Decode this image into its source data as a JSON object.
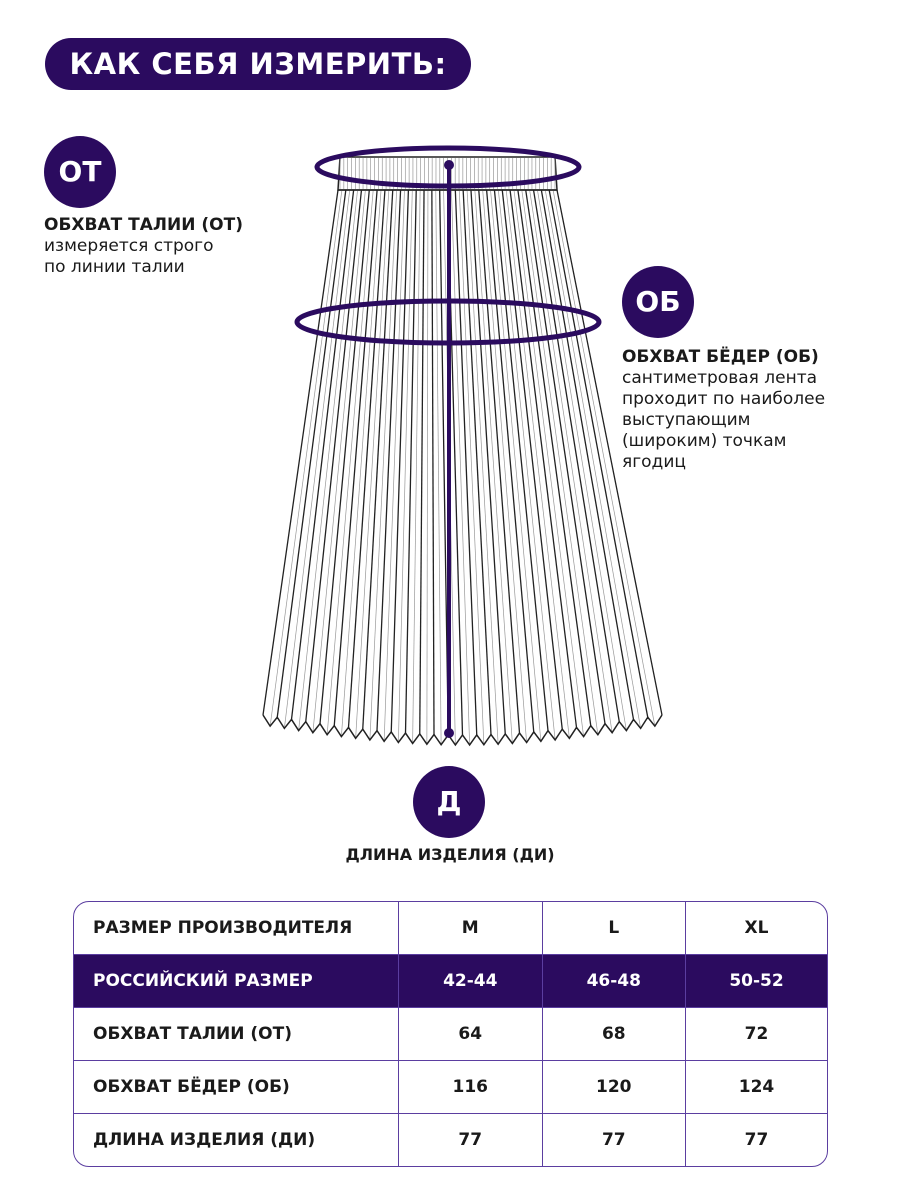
{
  "title": "КАК СЕБЯ ИЗМЕРИТЬ:",
  "accent_color": "#2b0b5f",
  "waist": {
    "badge": "ОТ",
    "heading": "ОБХВАТ ТАЛИИ (ОТ)",
    "lines": [
      "измеряется строго",
      "по линии талии"
    ]
  },
  "hips": {
    "badge": "ОБ",
    "heading": "ОБХВАТ БЁДЕР (ОБ)",
    "lines": [
      "сантиметровая лента",
      "проходит по наиболее",
      "выступающим",
      "(широким) точкам",
      "ягодиц"
    ]
  },
  "length": {
    "badge": "Д",
    "caption": "ДЛИНА ИЗДЕЛИЯ (ДИ)"
  },
  "table": {
    "rows": [
      [
        "РАЗМЕР ПРОИЗВОДИТЕЛЯ",
        "M",
        "L",
        "XL"
      ],
      [
        "РОССИЙСКИЙ РАЗМЕР",
        "42-44",
        "46-48",
        "50-52"
      ],
      [
        "ОБХВАТ ТАЛИИ (ОТ)",
        "64",
        "68",
        "72"
      ],
      [
        "ОБХВАТ БЁДЕР (ОБ)",
        "116",
        "120",
        "124"
      ],
      [
        "ДЛИНА ИЗДЕЛИЯ (ДИ)",
        "77",
        "77",
        "77"
      ]
    ],
    "highlighted_row": 1
  }
}
